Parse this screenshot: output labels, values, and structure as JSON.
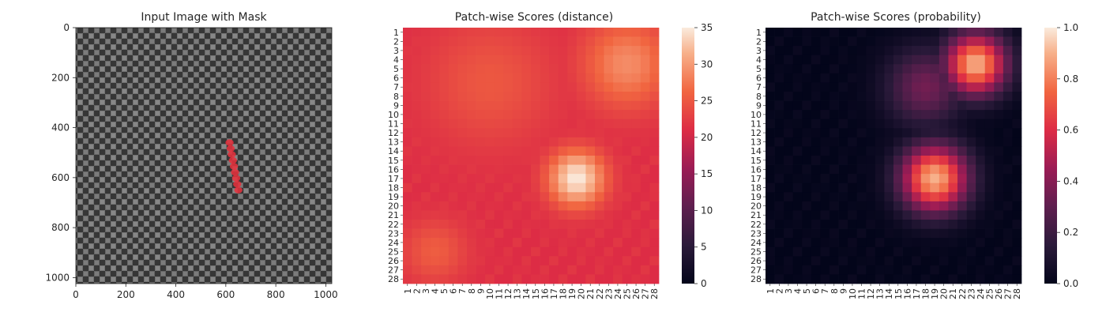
{
  "chart_data": [
    {
      "type": "image",
      "title": "Input Image with Mask",
      "xlim": [
        0,
        1024
      ],
      "ylim": [
        1024,
        0
      ],
      "x_ticks": [
        "0",
        "200",
        "400",
        "600",
        "800",
        "1000"
      ],
      "y_ticks": [
        "0",
        "200",
        "400",
        "600",
        "800",
        "1000"
      ],
      "mask_color": "#e8303c",
      "mask_region": {
        "x": [
          615,
          650
        ],
        "y": [
          460,
          650
        ]
      }
    },
    {
      "type": "heatmap",
      "title": "Patch-wise Scores (distance)",
      "rows": [
        "1",
        "2",
        "3",
        "4",
        "5",
        "6",
        "7",
        "8",
        "9",
        "10",
        "11",
        "12",
        "13",
        "14",
        "15",
        "16",
        "17",
        "18",
        "19",
        "20",
        "21",
        "22",
        "23",
        "24",
        "25",
        "26",
        "27",
        "28"
      ],
      "cols": [
        "1",
        "2",
        "3",
        "4",
        "5",
        "6",
        "7",
        "8",
        "9",
        "10",
        "11",
        "12",
        "13",
        "14",
        "15",
        "16",
        "17",
        "18",
        "19",
        "20",
        "21",
        "22",
        "23",
        "24",
        "25",
        "26",
        "27",
        "28"
      ],
      "colorbar_range": [
        0,
        35
      ],
      "colorbar_ticks": [
        "0",
        "5",
        "10",
        "15",
        "20",
        "25",
        "30",
        "35"
      ],
      "colormap": "rocket",
      "base_value": 21,
      "hotspots": [
        {
          "row": 17,
          "col": 19.5,
          "peak": 35,
          "radius": 2.2
        },
        {
          "row": 4.5,
          "col": 25,
          "peak": 29,
          "radius": 3.5
        },
        {
          "row": 25,
          "col": 4,
          "peak": 25.5,
          "radius": 2.5
        },
        {
          "row": 6.5,
          "col": 10,
          "peak": 25,
          "radius": 5.0
        }
      ]
    },
    {
      "type": "heatmap",
      "title": "Patch-wise Scores (probability)",
      "rows": [
        "1",
        "2",
        "3",
        "4",
        "5",
        "6",
        "7",
        "8",
        "9",
        "10",
        "11",
        "12",
        "13",
        "14",
        "15",
        "16",
        "17",
        "18",
        "19",
        "20",
        "21",
        "22",
        "23",
        "24",
        "25",
        "26",
        "27",
        "28"
      ],
      "cols": [
        "1",
        "2",
        "3",
        "4",
        "5",
        "6",
        "7",
        "8",
        "9",
        "10",
        "11",
        "12",
        "13",
        "14",
        "15",
        "16",
        "17",
        "18",
        "19",
        "20",
        "21",
        "22",
        "23",
        "24",
        "25",
        "26",
        "27",
        "28"
      ],
      "colorbar_range": [
        0.0,
        1.0
      ],
      "colorbar_ticks": [
        "0.0",
        "0.2",
        "0.4",
        "0.6",
        "0.8",
        "1.0"
      ],
      "colormap": "rocket",
      "base_value": 0.0,
      "hotspots": [
        {
          "row": 17,
          "col": 19,
          "peak": 0.9,
          "radius": 2.6
        },
        {
          "row": 4.5,
          "col": 23.5,
          "peak": 0.9,
          "radius": 2.4
        },
        {
          "row": 7,
          "col": 18,
          "peak": 0.35,
          "radius": 3.0
        }
      ]
    }
  ]
}
